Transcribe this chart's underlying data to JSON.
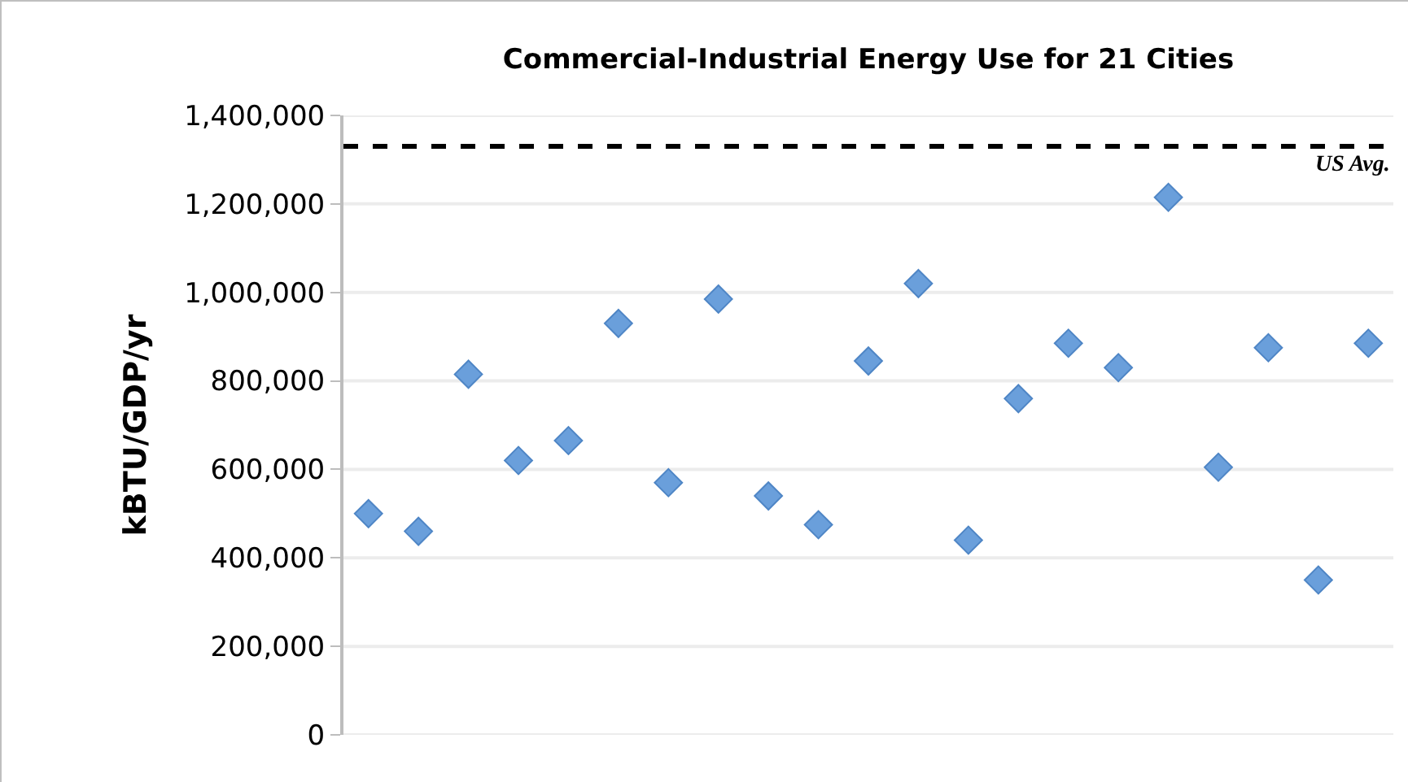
{
  "chart_data": {
    "type": "scatter",
    "title": "Commercial-Industrial Energy Use for 21 Cities",
    "ylabel": "kBTU/GDP/yr",
    "categories": [
      null,
      null,
      null,
      null,
      null,
      null,
      null,
      null,
      null,
      null,
      null,
      null,
      null,
      null,
      null,
      null,
      null,
      null,
      null,
      null,
      null
    ],
    "series": [
      {
        "color": "#6a9fdb",
        "values": [
          500000,
          460000,
          815000,
          620000,
          665000,
          930000,
          570000,
          985000,
          540000,
          475000,
          845000,
          1020000,
          440000,
          760000,
          885000,
          830000,
          1215000,
          605000,
          875000,
          350000,
          885000
        ]
      }
    ],
    "ylim": [
      0,
      1400000
    ],
    "yticks": [
      {
        "value": 0,
        "label": "0"
      },
      {
        "value": 200000,
        "label": "200,000"
      },
      {
        "value": 400000,
        "label": "400,000"
      },
      {
        "value": 600000,
        "label": "600,000"
      },
      {
        "value": 800000,
        "label": "800,000"
      },
      {
        "value": 1000000,
        "label": "1,000,000"
      },
      {
        "value": 1200000,
        "label": "1,200,000"
      },
      {
        "value": 1400000,
        "label": "1,400,000"
      }
    ],
    "grid": "y",
    "marker": "diamond",
    "ref_lines": [
      {
        "axis": "y",
        "value": 1330000,
        "label": "US Avg.",
        "color": "#000000",
        "line_style": "dashed"
      }
    ]
  }
}
